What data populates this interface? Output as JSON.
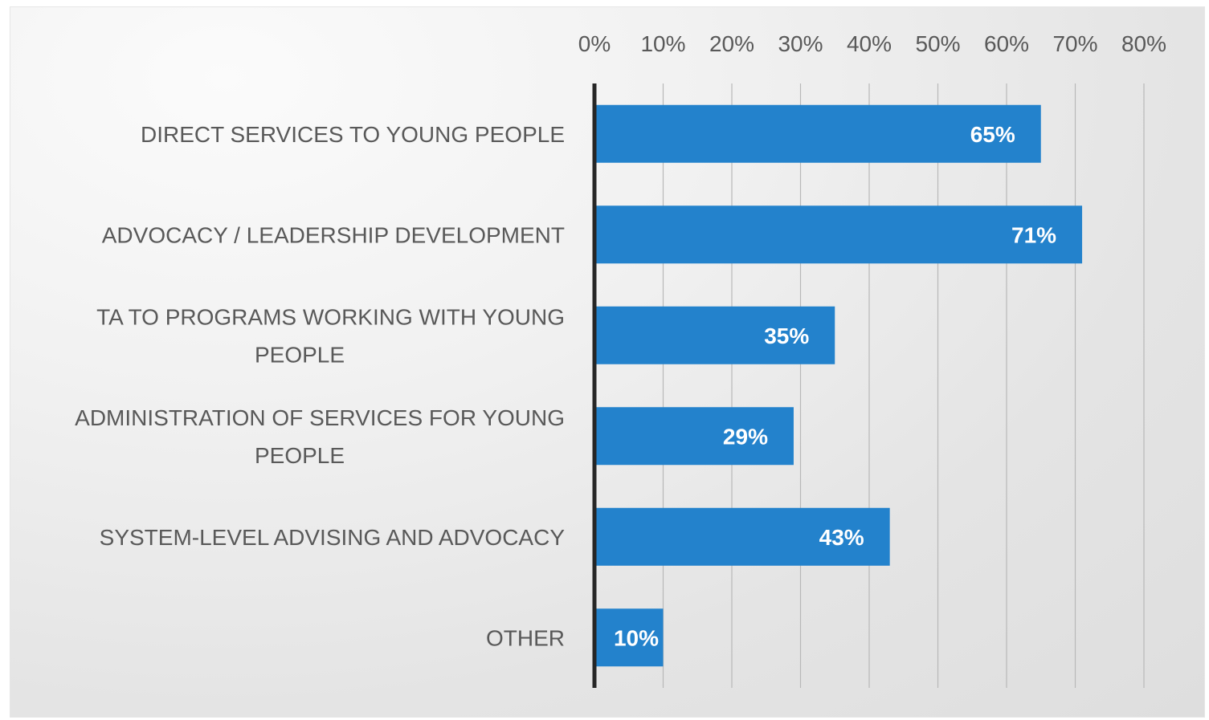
{
  "chart_data": {
    "type": "bar",
    "orientation": "horizontal",
    "categories": [
      "DIRECT SERVICES TO YOUNG PEOPLE",
      "ADVOCACY / LEADERSHIP DEVELOPMENT",
      "TA TO PROGRAMS WORKING WITH YOUNG PEOPLE",
      "ADMINISTRATION OF SERVICES FOR YOUNG PEOPLE",
      "SYSTEM-LEVEL ADVISING AND ADVOCACY",
      "OTHER"
    ],
    "category_lines": [
      [
        "DIRECT SERVICES TO YOUNG PEOPLE"
      ],
      [
        "ADVOCACY / LEADERSHIP DEVELOPMENT"
      ],
      [
        "TA TO PROGRAMS WORKING WITH YOUNG",
        "PEOPLE"
      ],
      [
        "ADMINISTRATION OF SERVICES FOR YOUNG",
        "PEOPLE"
      ],
      [
        "SYSTEM-LEVEL ADVISING AND ADVOCACY"
      ],
      [
        "OTHER"
      ]
    ],
    "values": [
      65,
      71,
      35,
      29,
      43,
      10
    ],
    "data_labels": [
      "65%",
      "71%",
      "35%",
      "29%",
      "43%",
      "10%"
    ],
    "x_ticks": [
      "0%",
      "10%",
      "20%",
      "30%",
      "40%",
      "50%",
      "60%",
      "70%",
      "80%"
    ],
    "xlim": [
      0,
      80
    ],
    "x_axis_position": "top",
    "grid": true,
    "bar_color": "#2382CC",
    "title": "",
    "xlabel": "",
    "ylabel": ""
  }
}
